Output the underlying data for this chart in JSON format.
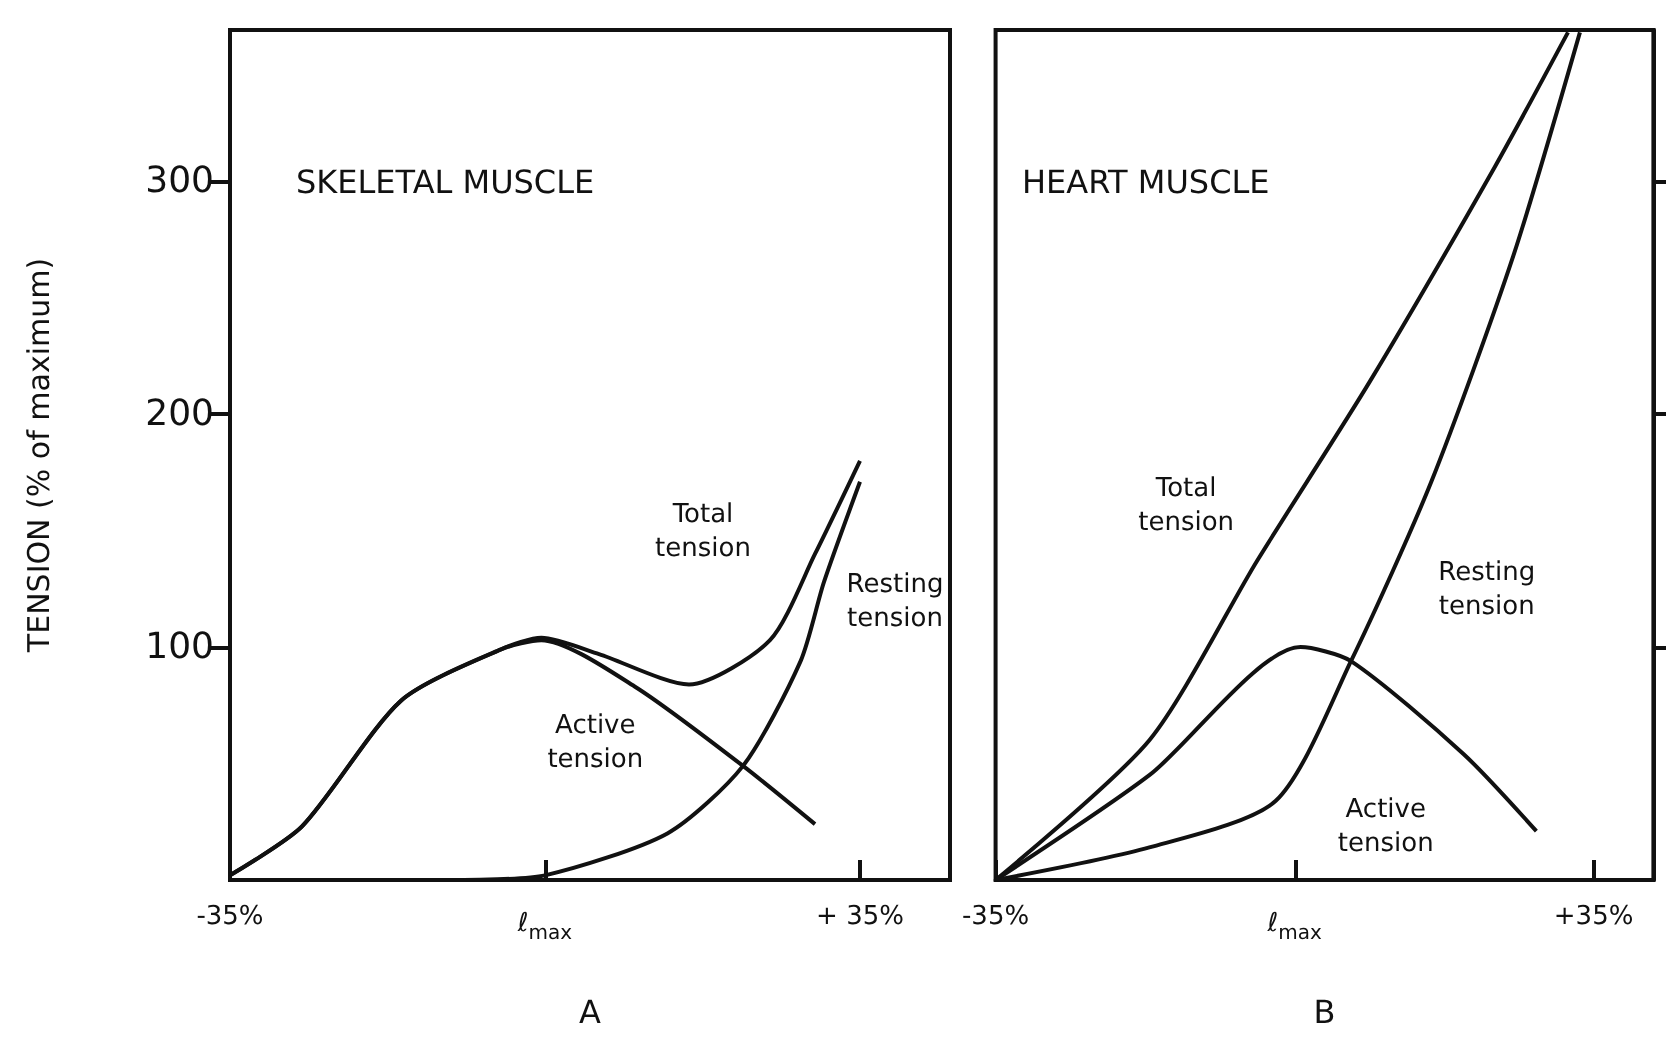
{
  "chart_data": [
    {
      "type": "line",
      "title": "SKELETAL MUSCLE",
      "xlabel": "A",
      "ylabel": "TENSION (% of maximum)",
      "xlim": [
        -35,
        45
      ],
      "xticks": [
        {
          "value": -35,
          "label": "-35%"
        },
        {
          "value": 0,
          "label": "ℓ$_{max}$"
        },
        {
          "value": 35,
          "label": "+ 35%"
        }
      ],
      "ylim": [
        0,
        365
      ],
      "yticks": [
        100,
        200,
        300
      ],
      "marker": "none",
      "series": [
        {
          "color": "#111111",
          "x": [
            -35,
            -27,
            -16,
            -4.9,
            -0.4,
            10,
            22,
            30
          ],
          "values": [
            2,
            23,
            77,
            99,
            103,
            83,
            49,
            24
          ]
        },
        {
          "color": "#111111",
          "x": [
            -35,
            -27,
            -16,
            -4.9,
            -0.4,
            6,
            16,
            25,
            30,
            35
          ],
          "values": [
            2,
            23,
            77,
            99,
            104,
            97,
            84,
            103,
            140,
            180
          ]
        },
        {
          "color": "#111111",
          "x": [
            -9,
            0,
            13.6,
            22,
            28.4,
            31,
            35
          ],
          "values": [
            0,
            2,
            20,
            49,
            94,
            128,
            171
          ]
        }
      ],
      "annotations": [
        {
          "text": "Total\ntension",
          "x": 26,
          "y": 117
        },
        {
          "text": "Resting\ntension",
          "x": 30,
          "y": 111
        },
        {
          "text": "Active\ntension",
          "x": 16.7,
          "y": 69
        }
      ]
    },
    {
      "type": "line",
      "title": "HEART MUSCLE",
      "xlabel": "B",
      "xlim": [
        -35,
        42
      ],
      "xticks": [
        {
          "value": -35,
          "label": "-35%"
        },
        {
          "value": 0,
          "label": "ℓ$_{max}$"
        },
        {
          "value": 35,
          "label": "+35%"
        }
      ],
      "ylim": [
        0,
        365
      ],
      "yticks": [
        100,
        200,
        300
      ],
      "tick_labels": "x",
      "marker": "none",
      "series": [
        {
          "color": "#111111",
          "x": [
            -35,
            -17,
            -4.4,
            8.8,
            23.4,
            32
          ],
          "values": [
            0,
            60,
            137,
            214,
            306,
            364
          ]
        },
        {
          "color": "#111111",
          "x": [
            -35,
            -17,
            0.7,
            6.6,
            19.8,
            28.3
          ],
          "values": [
            0,
            45,
            100,
            94,
            54,
            21
          ]
        },
        {
          "color": "#111111",
          "x": [
            -35,
            -17,
            -2.2,
            6.6,
            16,
            25.6,
            33.4
          ],
          "values": [
            0,
            14,
            34,
            94,
            171,
            268,
            364
          ]
        }
      ],
      "annotations": [
        {
          "text": "Total\ntension",
          "x": -3.8,
          "y": 135
        },
        {
          "text": "Resting\ntension",
          "x": 15,
          "y": 159
        },
        {
          "text": "Active\ntension",
          "x": 20.5,
          "y": 57
        }
      ]
    }
  ]
}
